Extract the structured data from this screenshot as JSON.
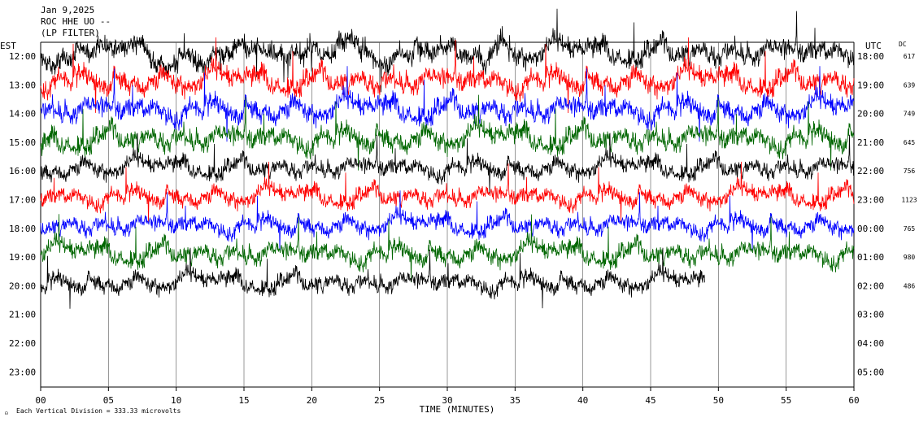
{
  "header": {
    "date": "Jan 9,2025",
    "station": "ROC HHE UO --",
    "filter": "(LP FILTER)"
  },
  "left_axis_label": "EST",
  "right_axis_label": "UTC",
  "dc_label": "DC",
  "x_axis_label": "TIME (MINUTES)",
  "footer": "Each Vertical Division =  333.33 microvolts",
  "chart_data": {
    "type": "line",
    "title": "",
    "xlabel": "TIME (MINUTES)",
    "x_ticks": [
      "00",
      "05",
      "10",
      "15",
      "20",
      "25",
      "30",
      "35",
      "40",
      "45",
      "50",
      "55",
      "60"
    ],
    "xlim": [
      0,
      60
    ],
    "rows": [
      {
        "est": "12:00",
        "utc": "18:00",
        "dc": "617",
        "color": "#000000",
        "amp": 1.0,
        "end": 60
      },
      {
        "est": "13:00",
        "utc": "19:00",
        "dc": "639",
        "color": "#ff0000",
        "amp": 1.0,
        "end": 60
      },
      {
        "est": "14:00",
        "utc": "20:00",
        "dc": "749",
        "color": "#0000ff",
        "amp": 1.0,
        "end": 60
      },
      {
        "est": "15:00",
        "utc": "21:00",
        "dc": "645",
        "color": "#006600",
        "amp": 1.0,
        "end": 60
      },
      {
        "est": "16:00",
        "utc": "22:00",
        "dc": "756",
        "color": "#000000",
        "amp": 0.8,
        "end": 60
      },
      {
        "est": "17:00",
        "utc": "23:00",
        "dc": "1123",
        "color": "#ff0000",
        "amp": 0.8,
        "end": 60
      },
      {
        "est": "18:00",
        "utc": "00:00",
        "dc": "765",
        "color": "#0000ff",
        "amp": 0.8,
        "end": 60
      },
      {
        "est": "19:00",
        "utc": "01:00",
        "dc": "980",
        "color": "#006600",
        "amp": 0.9,
        "end": 60
      },
      {
        "est": "20:00",
        "utc": "02:00",
        "dc": "486",
        "color": "#000000",
        "amp": 0.8,
        "end": 49
      },
      {
        "est": "21:00",
        "utc": "03:00",
        "dc": "",
        "color": "#000000",
        "amp": 0,
        "end": 0
      },
      {
        "est": "22:00",
        "utc": "04:00",
        "dc": "",
        "color": "#000000",
        "amp": 0,
        "end": 0
      },
      {
        "est": "23:00",
        "utc": "05:00",
        "dc": "",
        "color": "#000000",
        "amp": 0,
        "end": 0
      }
    ]
  }
}
